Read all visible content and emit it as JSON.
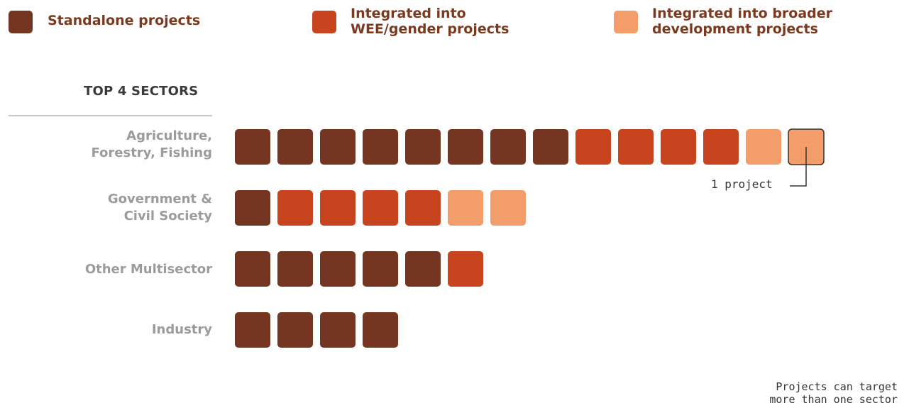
{
  "legend": {
    "items": [
      {
        "label": "Standalone projects",
        "color": "#743621"
      },
      {
        "label": "Integrated into\nWEE/gender projects",
        "color": "#c8441e"
      },
      {
        "label": "Integrated into broader\ndevelopment projects",
        "color": "#f39d6b"
      }
    ]
  },
  "section": {
    "title": "TOP 4 SECTORS"
  },
  "annotation": {
    "text": "1 project"
  },
  "footnote": {
    "text": "Projects can target\nmore than one sector"
  },
  "chart_data": {
    "type": "bar",
    "subtype": "stacked-unit-squares",
    "orientation": "horizontal",
    "categories": [
      "Agriculture,\nForestry, Fishing",
      "Government &\nCivil Society",
      "Other Multisector",
      "Industry"
    ],
    "series": [
      {
        "name": "Standalone projects",
        "color": "#743621",
        "values": [
          8,
          1,
          5,
          4
        ]
      },
      {
        "name": "Integrated into WEE/gender projects",
        "color": "#c8441e",
        "values": [
          4,
          4,
          1,
          0
        ]
      },
      {
        "name": "Integrated into broader development projects",
        "color": "#f39d6b",
        "values": [
          2,
          2,
          0,
          0
        ]
      }
    ],
    "unit": "1 project",
    "title": "TOP 4 SECTORS"
  }
}
